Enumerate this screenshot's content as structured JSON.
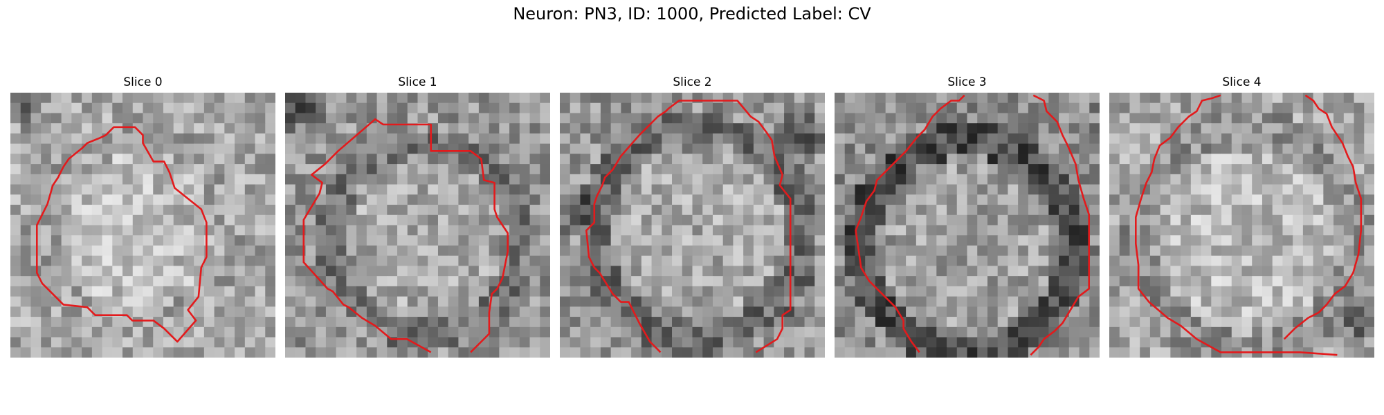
{
  "figure": {
    "title": "Neuron: PN3, ID: 1000, Predicted Label: CV"
  },
  "panels": [
    {
      "title": "Slice 0"
    },
    {
      "title": "Slice 1"
    },
    {
      "title": "Slice 2"
    },
    {
      "title": "Slice 3"
    },
    {
      "title": "Slice 4"
    }
  ],
  "colors": {
    "contour": "#e31a1c",
    "background": "#ffffff"
  }
}
